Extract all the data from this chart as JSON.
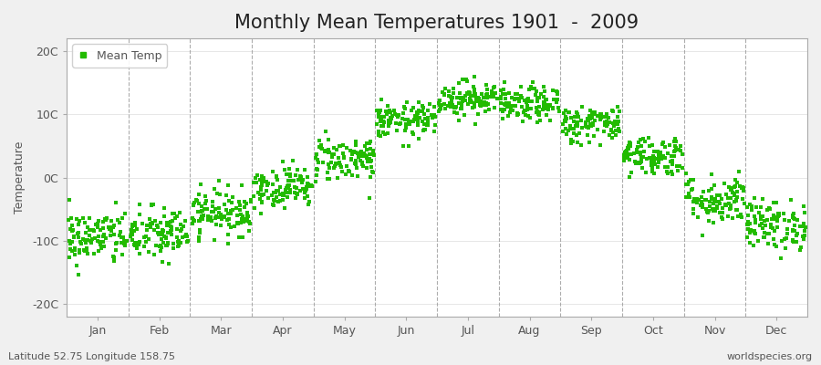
{
  "title": "Monthly Mean Temperatures 1901  -  2009",
  "ylabel": "Temperature",
  "yticks": [
    -20,
    -10,
    0,
    10,
    20
  ],
  "ytick_labels": [
    "-20C",
    "-10C",
    "0C",
    "10C",
    "20C"
  ],
  "ylim": [
    -22,
    22
  ],
  "months": [
    "Jan",
    "Feb",
    "Mar",
    "Apr",
    "May",
    "Jun",
    "Jul",
    "Aug",
    "Sep",
    "Oct",
    "Nov",
    "Dec"
  ],
  "mean_temps": [
    -9.5,
    -9.0,
    -5.5,
    -1.5,
    3.0,
    9.0,
    12.5,
    11.5,
    8.5,
    3.5,
    -3.5,
    -7.5
  ],
  "std_temps": [
    2.2,
    2.2,
    1.8,
    1.6,
    1.8,
    1.4,
    1.4,
    1.4,
    1.5,
    1.6,
    2.0,
    2.0
  ],
  "n_years": 109,
  "dot_color": "#22bb00",
  "dot_size": 6,
  "background_color": "#f0f0f0",
  "plot_bg_color": "#ffffff",
  "legend_label": "Mean Temp",
  "subtitle_left": "Latitude 52.75 Longitude 158.75",
  "subtitle_right": "worldspecies.org",
  "title_fontsize": 15,
  "axis_fontsize": 9,
  "label_fontsize": 9,
  "subtitle_fontsize": 8,
  "dashed_line_color": "#999999",
  "spine_color": "#aaaaaa",
  "tick_color": "#aaaaaa",
  "text_color": "#555555"
}
